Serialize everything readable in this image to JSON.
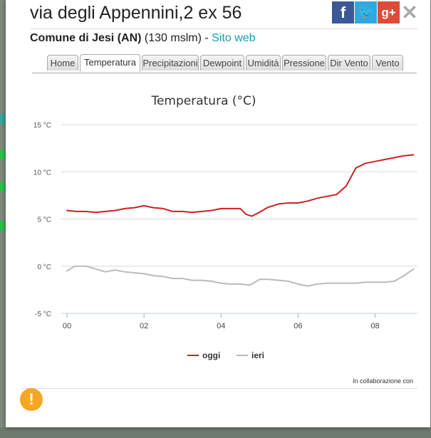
{
  "header": {
    "title": "via degli Appennini,2 ex 56",
    "comune": "Comune di Jesi (AN)",
    "altitude": "(130 mslm)",
    "separator": "-",
    "website_label": "Sito web"
  },
  "social": {
    "facebook": "f",
    "twitter": "🐦",
    "googleplus": "g+",
    "close": "✕"
  },
  "icons": {
    "facebook": "facebook-icon",
    "twitter": "twitter-icon",
    "googleplus": "google-plus-icon",
    "close": "close-icon",
    "warning": "warning-icon"
  },
  "tabs": [
    {
      "label": "Home"
    },
    {
      "label": "Temperatura",
      "active": true
    },
    {
      "label": "Precipitazioni"
    },
    {
      "label": "Dewpoint"
    },
    {
      "label": "Umidità"
    },
    {
      "label": "Pressione"
    },
    {
      "label": "Dir Vento"
    },
    {
      "label": "Vento"
    }
  ],
  "footer": {
    "collab": "In collaborazione con",
    "warning": "!"
  },
  "chart_data": {
    "type": "line",
    "title": "Temperatura (°C)",
    "ylim": [
      -5,
      15
    ],
    "yticks": [
      "15 °C",
      "10 °C",
      "5 °C",
      "0 °C",
      "-5 °C"
    ],
    "ytick_values": [
      15,
      10,
      5,
      0,
      -5
    ],
    "xlim": [
      0,
      9.1
    ],
    "xticks": [
      "00",
      "02",
      "04",
      "06",
      "08"
    ],
    "xtick_values": [
      0,
      2,
      4,
      6,
      8
    ],
    "grid": true,
    "legend": "bottom-center",
    "series": [
      {
        "name": "oggi",
        "color": "#cc2222",
        "x": [
          0,
          0.25,
          0.5,
          0.75,
          1.0,
          1.25,
          1.5,
          1.75,
          2.0,
          2.25,
          2.5,
          2.75,
          3.0,
          3.25,
          3.5,
          3.75,
          4.0,
          4.25,
          4.5,
          4.65,
          4.8,
          4.95,
          5.2,
          5.5,
          5.75,
          6.0,
          6.25,
          6.5,
          6.75,
          7.0,
          7.25,
          7.5,
          7.75,
          8.0,
          8.25,
          8.5,
          8.75,
          9.0
        ],
        "y": [
          5.9,
          5.8,
          5.8,
          5.7,
          5.8,
          5.9,
          6.1,
          6.2,
          6.4,
          6.2,
          6.1,
          5.8,
          5.8,
          5.7,
          5.8,
          5.9,
          6.1,
          6.1,
          6.1,
          5.5,
          5.3,
          5.6,
          6.2,
          6.6,
          6.7,
          6.7,
          6.9,
          7.2,
          7.4,
          7.6,
          8.5,
          10.4,
          10.9,
          11.1,
          11.3,
          11.5,
          11.7,
          11.8
        ]
      },
      {
        "name": "ieri",
        "color": "#bbbbbb",
        "x": [
          0,
          0.2,
          0.5,
          0.75,
          1.0,
          1.25,
          1.5,
          1.75,
          2.0,
          2.25,
          2.5,
          2.75,
          3.0,
          3.25,
          3.5,
          3.75,
          4.0,
          4.25,
          4.5,
          4.75,
          5.0,
          5.25,
          5.5,
          5.75,
          6.0,
          6.25,
          6.5,
          6.75,
          7.0,
          7.25,
          7.5,
          7.75,
          8.0,
          8.25,
          8.5,
          8.75,
          9.0
        ],
        "y": [
          -0.5,
          0.0,
          0.0,
          -0.3,
          -0.6,
          -0.4,
          -0.6,
          -0.7,
          -0.8,
          -1.0,
          -1.1,
          -1.3,
          -1.3,
          -1.5,
          -1.5,
          -1.6,
          -1.8,
          -1.9,
          -1.9,
          -2.0,
          -1.4,
          -1.4,
          -1.5,
          -1.6,
          -1.9,
          -2.1,
          -1.9,
          -1.8,
          -1.8,
          -1.8,
          -1.8,
          -1.7,
          -1.7,
          -1.7,
          -1.6,
          -1.0,
          -0.3
        ]
      }
    ]
  }
}
